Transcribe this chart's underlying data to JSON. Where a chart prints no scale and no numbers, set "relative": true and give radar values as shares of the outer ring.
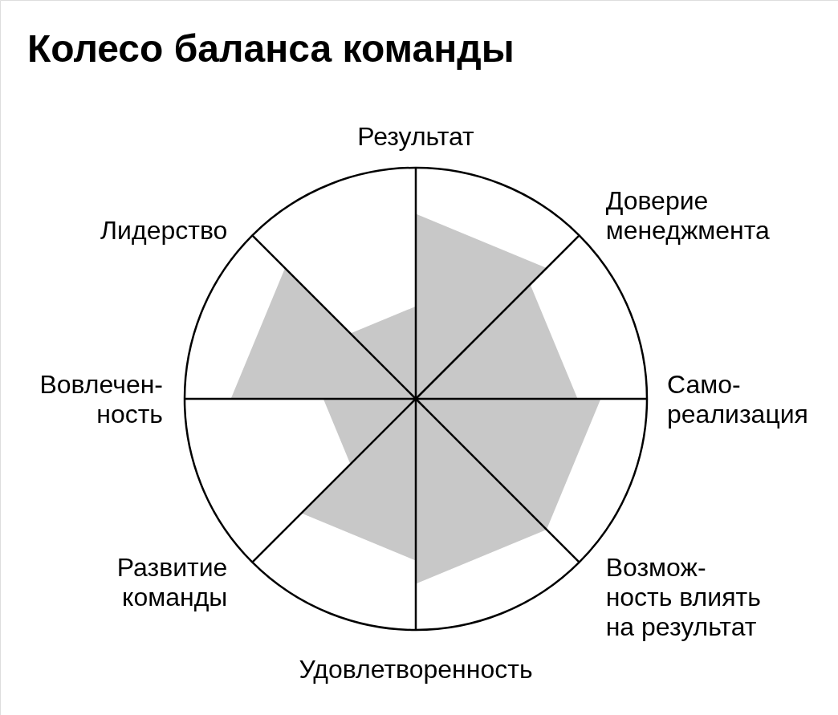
{
  "chart_data": {
    "type": "radar",
    "title": "Колесо баланса команды",
    "categories": [
      "Результат",
      "Доверие\nменеджмента",
      "Само-\nреализация",
      "Возмож-\nность влиять\nна результат",
      "Удовлетворенность",
      "Развитие\nкоманды",
      "Вовлечен-\nность",
      "Лидерство"
    ],
    "relative": true,
    "series": [
      {
        "color": "#c8c8c8",
        "values": [
          0.8,
          0.8,
          0,
          0,
          0,
          0,
          0,
          0
        ]
      },
      {
        "color": "#c8c8c8",
        "values": [
          0,
          0.7,
          0.7,
          0,
          0,
          0,
          0,
          0
        ]
      },
      {
        "color": "#c8c8c8",
        "values": [
          0,
          0,
          0.8,
          0.8,
          0,
          0,
          0,
          0
        ]
      },
      {
        "color": "#c8c8c8",
        "values": [
          0,
          0,
          0,
          0.8,
          0.8,
          0,
          0,
          0
        ]
      },
      {
        "color": "#c8c8c8",
        "values": [
          0,
          0,
          0,
          0,
          0.7,
          0.7,
          0,
          0
        ]
      },
      {
        "color": "#c8c8c8",
        "values": [
          0,
          0,
          0,
          0,
          0,
          0.4,
          0.4,
          0
        ]
      },
      {
        "color": "#c8c8c8",
        "values": [
          0,
          0,
          0,
          0,
          0,
          0,
          0.8,
          0.8
        ]
      },
      {
        "color": "#c8c8c8",
        "values": [
          0.4,
          0,
          0,
          0,
          0,
          0,
          0,
          0.4
        ]
      }
    ]
  }
}
